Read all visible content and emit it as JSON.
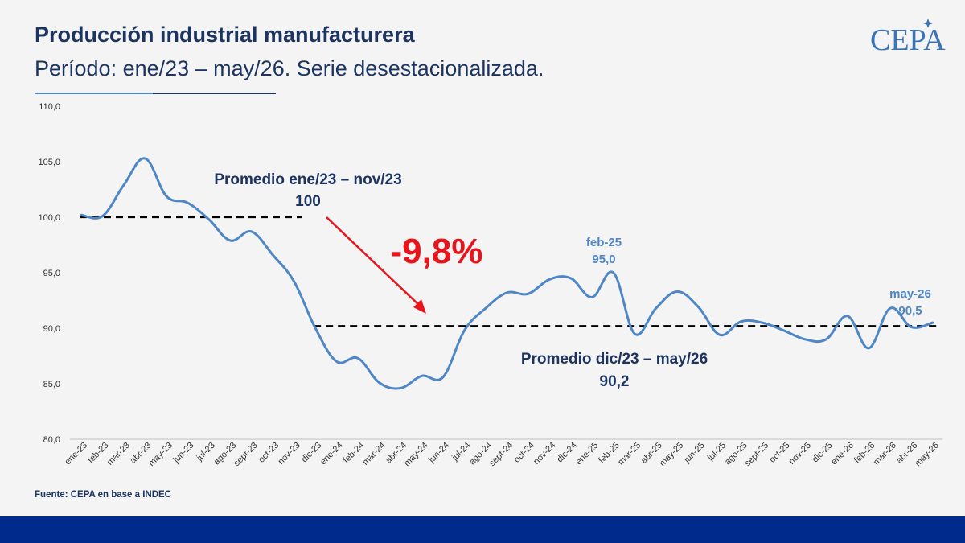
{
  "header": {
    "title": "Producción industrial manufacturera",
    "subtitle": "Período: ene/23 – may/26. Serie desestacionalizada.",
    "logo_text": "CEPA"
  },
  "footer": {
    "source": "Fuente: CEPA en base a INDEC"
  },
  "colors": {
    "title": "#1d3461",
    "series": "#4f86c6",
    "annotation_red": "#e8141c",
    "footer_bar": "#002b8c"
  },
  "chart_data": {
    "type": "line",
    "title": "",
    "xlabel": "",
    "ylabel": "",
    "ylim": [
      80,
      110
    ],
    "yticks": [
      "80,0",
      "85,0",
      "90,0",
      "95,0",
      "100,0",
      "105,0",
      "110,0"
    ],
    "grid": false,
    "categories": [
      "ene-23",
      "feb-23",
      "mar-23",
      "abr-23",
      "may-23",
      "jun-23",
      "jul-23",
      "ago-23",
      "sept-23",
      "oct-23",
      "nov-23",
      "dic-23",
      "ene-24",
      "feb-24",
      "mar-24",
      "abr-24",
      "may-24",
      "jun-24",
      "jul-24",
      "ago-24",
      "sept-24",
      "oct-24",
      "nov-24",
      "dic-24",
      "ene-25",
      "feb-25",
      "mar-25",
      "abr-25",
      "may-25",
      "jun-25",
      "jul-25",
      "ago-25",
      "sept-25",
      "oct-25",
      "nov-25",
      "dic-25",
      "ene-26",
      "feb-26",
      "mar-26",
      "abr-26",
      "may-26"
    ],
    "series": [
      {
        "values": [
          100.2,
          100.1,
          102.9,
          105.3,
          101.9,
          101.3,
          99.8,
          97.9,
          98.7,
          96.6,
          94.2,
          90.0,
          87.0,
          87.3,
          85.1,
          84.6,
          85.7,
          85.6,
          89.8,
          91.8,
          93.2,
          93.1,
          94.4,
          94.5,
          92.8,
          95.0,
          89.5,
          91.8,
          93.3,
          91.9,
          89.4,
          90.6,
          90.5,
          89.8,
          89.0,
          89.0,
          91.1,
          88.2,
          91.8,
          90.1,
          90.5
        ]
      }
    ],
    "reference_lines": [
      {
        "value": 100,
        "from": "ene-23",
        "to": "nov-23"
      },
      {
        "value": 90.2,
        "from": "dic-23",
        "to": "may-26"
      }
    ],
    "annotations": {
      "avg1_line1": "Promedio ene/23 – nov/23",
      "avg1_line2": "100",
      "avg2_line1": "Promedio dic/23 – may/26",
      "avg2_line2": "90,2",
      "change": "-9,8%",
      "peak_label": "feb-25",
      "peak_value": "95,0",
      "last_label": "may-26",
      "last_value": "90,5"
    }
  }
}
